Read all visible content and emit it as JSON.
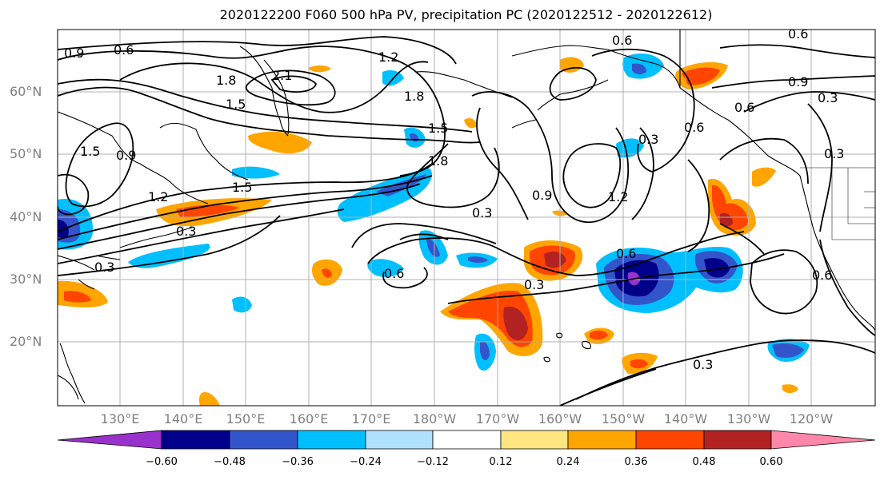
{
  "title": "2020122200 F060 500 hPa PV, precipitation PC (2020122512 - 2020122612)",
  "lat_labels": [
    "60°N",
    "50°N",
    "40°N",
    "30°N",
    "20°N"
  ],
  "lon_labels": [
    "130°E",
    "140°E",
    "150°E",
    "160°E",
    "170°E",
    "180°W",
    "170°W",
    "160°W",
    "150°W",
    "140°W",
    "130°W",
    "120°W"
  ],
  "colorbar": {
    "ticks": [
      "−0.60",
      "−0.48",
      "−0.36",
      "−0.24",
      "−0.12",
      "0.12",
      "0.24",
      "0.36",
      "0.48",
      "0.60"
    ],
    "colors": [
      "#9932cc",
      "#00008b",
      "#3355cc",
      "#00bfff",
      "#b0e2ff",
      "#ffffff",
      "#ffe680",
      "#ffa500",
      "#ff4500",
      "#b22222",
      "#ff88aa"
    ]
  },
  "contour_labels": [
    "0.9",
    "0.6",
    "1.2",
    "0.6",
    "0.6",
    "1.8",
    "2.1",
    "1.5",
    "1.8",
    "1.5",
    "0.9",
    "0.3",
    "1.5",
    "0.9",
    "1.2",
    "1.5",
    "1.8",
    "0.3",
    "0.9",
    "0.3",
    "1.2",
    "0.6",
    "0.3",
    "0.3",
    "0.6",
    "0.6",
    "0.6",
    "0.3",
    "0.3",
    "0.6",
    "0.3"
  ],
  "map_colors": {
    "frame": "#000000",
    "grid": "#b0b0b0",
    "contour": "#000000",
    "coast": "#000000",
    "border": "#555555"
  }
}
